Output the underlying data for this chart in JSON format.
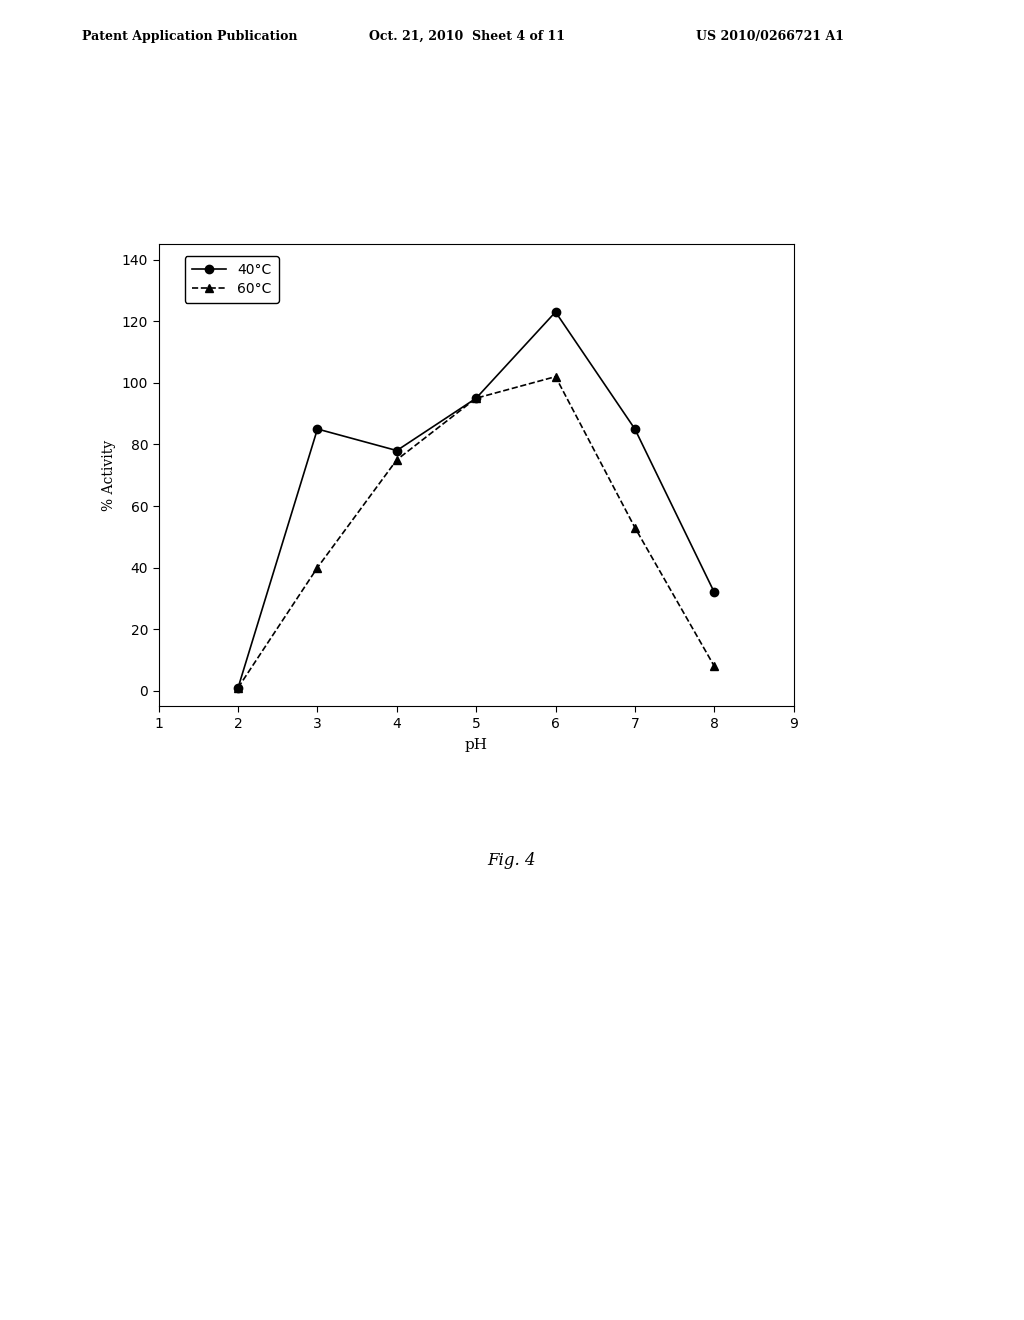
{
  "line1_label": "40°C",
  "line2_label": "60°C",
  "line1_x": [
    2,
    3,
    4,
    5,
    6,
    7,
    8
  ],
  "line1_y": [
    1,
    85,
    78,
    95,
    123,
    85,
    32
  ],
  "line2_x": [
    2,
    3,
    4,
    5,
    6,
    7,
    8
  ],
  "line2_y": [
    1,
    40,
    75,
    95,
    102,
    53,
    8
  ],
  "xlabel": "pH",
  "ylabel": "% Activity",
  "xlim": [
    1,
    9
  ],
  "ylim": [
    -5,
    145
  ],
  "xticks": [
    1,
    2,
    3,
    4,
    5,
    6,
    7,
    8,
    9
  ],
  "yticks": [
    0,
    20,
    40,
    60,
    80,
    100,
    120,
    140
  ],
  "fig_caption": "Fig. 4",
  "header_left": "Patent Application Publication",
  "header_center": "Oct. 21, 2010  Sheet 4 of 11",
  "header_right": "US 2010/0266721 A1",
  "background_color": "#ffffff",
  "line_color": "#000000"
}
